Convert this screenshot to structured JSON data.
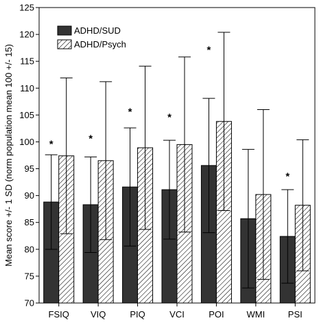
{
  "chart_data": {
    "type": "bar",
    "title": "",
    "xlabel": "",
    "ylabel": "Mean score +/- 1 SD (norm population mean 100 +/- 15)",
    "ylim": [
      70,
      125
    ],
    "yticks": [
      70,
      75,
      80,
      85,
      90,
      95,
      100,
      105,
      110,
      115,
      120,
      125
    ],
    "categories": [
      "FSIQ",
      "VIQ",
      "PIQ",
      "VCI",
      "POI",
      "WMI",
      "PSI"
    ],
    "series": [
      {
        "name": "ADHD/SUD",
        "fill": "solid",
        "color": "#333333",
        "values": [
          88.8,
          88.3,
          91.6,
          91.1,
          95.6,
          85.7,
          82.4
        ],
        "sd_upper": [
          97.6,
          97.2,
          102.6,
          100.3,
          108.1,
          98.6,
          91.1
        ],
        "sd_lower": [
          80.0,
          79.4,
          80.6,
          81.9,
          83.1,
          72.8,
          73.7
        ]
      },
      {
        "name": "ADHD/Psych",
        "fill": "hatched",
        "color": "#000000",
        "values": [
          97.4,
          96.5,
          98.9,
          99.5,
          103.8,
          90.2,
          88.2
        ],
        "sd_upper": [
          111.9,
          111.2,
          114.1,
          115.8,
          120.4,
          106.0,
          100.4
        ],
        "sd_lower": [
          82.9,
          81.8,
          83.7,
          83.2,
          87.2,
          74.4,
          76.0
        ]
      }
    ],
    "significance": {
      "symbol": "*",
      "categories": [
        "FSIQ",
        "VIQ",
        "PIQ",
        "VCI",
        "POI",
        "PSI"
      ],
      "level": [
        100,
        101,
        106,
        105,
        117.5,
        94
      ]
    },
    "legend": {
      "placement": "top-left"
    },
    "grid": false
  }
}
